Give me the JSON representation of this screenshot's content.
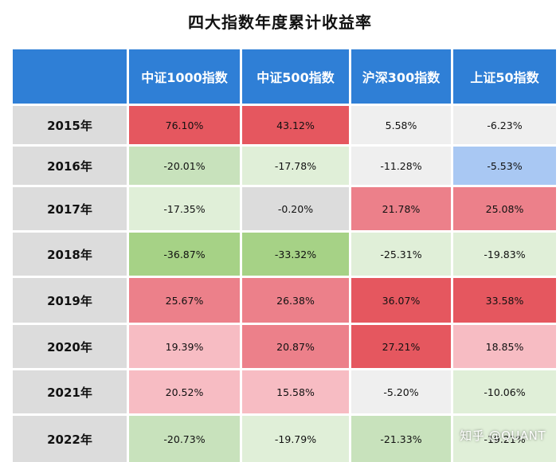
{
  "title": "四大指数年度累计收益率",
  "watermark": "知乎 @QUANT",
  "colors": {
    "header_bg": "#2f7fd6",
    "header_text": "#ffffff",
    "year_bg": "#dcdcdc",
    "strong_red": "#e5575f",
    "medium_red": "#ec808a",
    "light_red": "#f7bcc3",
    "neutral": "#efefef",
    "light_green": "#e0efd8",
    "medium_green": "#c8e2bc",
    "strong_green": "#a6d286",
    "blue": "#a9c8f3"
  },
  "chart_data": {
    "type": "table",
    "title": "四大指数年度累计收益率",
    "columns": [
      "",
      "中证1000指数",
      "中证500指数",
      "沪深300指数",
      "上证50指数"
    ],
    "rows": [
      {
        "year": "2015年",
        "cells": [
          {
            "text": "76.10%",
            "value": 76.1,
            "color": "#e5575f"
          },
          {
            "text": "43.12%",
            "value": 43.12,
            "color": "#e5575f"
          },
          {
            "text": "5.58%",
            "value": 5.58,
            "color": "#efefef"
          },
          {
            "text": "-6.23%",
            "value": -6.23,
            "color": "#efefef"
          }
        ]
      },
      {
        "year": "2016年",
        "cells": [
          {
            "text": "-20.01%",
            "value": -20.01,
            "color": "#c8e2bc"
          },
          {
            "text": "-17.78%",
            "value": -17.78,
            "color": "#e0efd8"
          },
          {
            "text": "-11.28%",
            "value": -11.28,
            "color": "#efefef"
          },
          {
            "text": "-5.53%",
            "value": -5.53,
            "color": "#a9c8f3"
          }
        ]
      },
      {
        "year": "2017年",
        "cells": [
          {
            "text": "-17.35%",
            "value": -17.35,
            "color": "#e0efd8"
          },
          {
            "text": "-0.20%",
            "value": -0.2,
            "color": "#dcdcdc"
          },
          {
            "text": "21.78%",
            "value": 21.78,
            "color": "#ec808a"
          },
          {
            "text": "25.08%",
            "value": 25.08,
            "color": "#ec808a"
          }
        ]
      },
      {
        "year": "2018年",
        "cells": [
          {
            "text": "-36.87%",
            "value": -36.87,
            "color": "#a6d286"
          },
          {
            "text": "-33.32%",
            "value": -33.32,
            "color": "#a6d286"
          },
          {
            "text": "-25.31%",
            "value": -25.31,
            "color": "#e0efd8"
          },
          {
            "text": "-19.83%",
            "value": -19.83,
            "color": "#e0efd8"
          }
        ]
      },
      {
        "year": "2019年",
        "cells": [
          {
            "text": "25.67%",
            "value": 25.67,
            "color": "#ec808a"
          },
          {
            "text": "26.38%",
            "value": 26.38,
            "color": "#ec808a"
          },
          {
            "text": "36.07%",
            "value": 36.07,
            "color": "#e5575f"
          },
          {
            "text": "33.58%",
            "value": 33.58,
            "color": "#e5575f"
          }
        ]
      },
      {
        "year": "2020年",
        "cells": [
          {
            "text": "19.39%",
            "value": 19.39,
            "color": "#f7bcc3"
          },
          {
            "text": "20.87%",
            "value": 20.87,
            "color": "#ec808a"
          },
          {
            "text": "27.21%",
            "value": 27.21,
            "color": "#e5575f"
          },
          {
            "text": "18.85%",
            "value": 18.85,
            "color": "#f7bcc3"
          }
        ]
      },
      {
        "year": "2021年",
        "cells": [
          {
            "text": "20.52%",
            "value": 20.52,
            "color": "#f7bcc3"
          },
          {
            "text": "15.58%",
            "value": 15.58,
            "color": "#f7bcc3"
          },
          {
            "text": "-5.20%",
            "value": -5.2,
            "color": "#efefef"
          },
          {
            "text": "-10.06%",
            "value": -10.06,
            "color": "#e0efd8"
          }
        ]
      },
      {
        "year": "2022年",
        "cells": [
          {
            "text": "-20.73%",
            "value": -20.73,
            "color": "#c8e2bc"
          },
          {
            "text": "-19.79%",
            "value": -19.79,
            "color": "#e0efd8"
          },
          {
            "text": "-21.33%",
            "value": -21.33,
            "color": "#c8e2bc"
          },
          {
            "text": "-19.21%",
            "value": -19.21,
            "color": "#e0efd8"
          }
        ]
      }
    ]
  }
}
